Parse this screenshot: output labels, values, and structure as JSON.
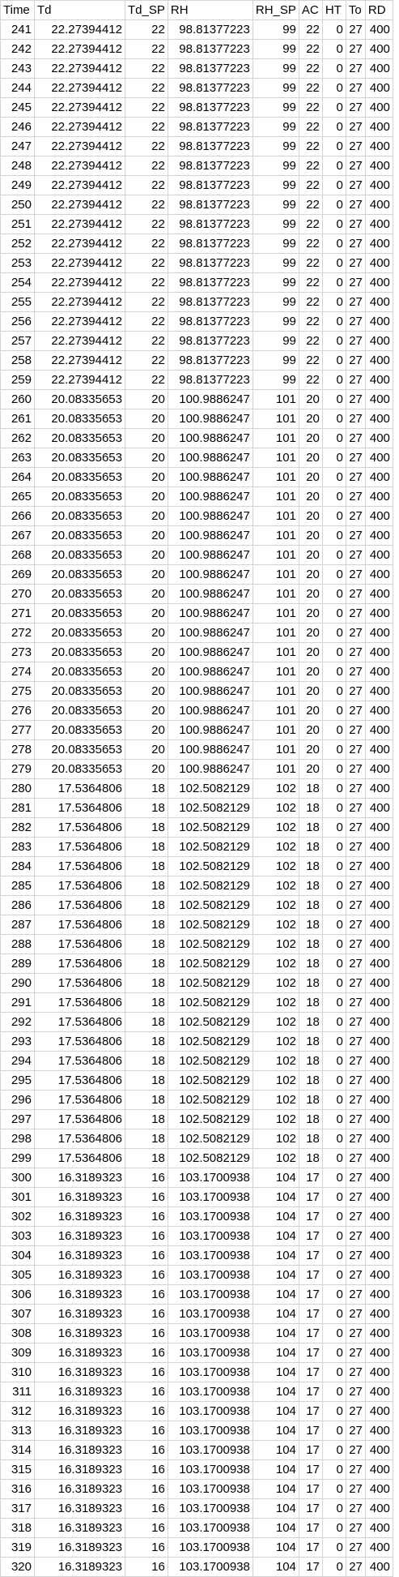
{
  "sheet": {
    "headers": [
      "Time",
      "Td",
      "Td_SP",
      "RH",
      "RH_SP",
      "AC",
      "HT",
      "To",
      "RD"
    ],
    "rows": [
      [
        "241",
        "22.27394412",
        "22",
        "98.81377223",
        "99",
        "22",
        "0",
        "27",
        "400"
      ],
      [
        "242",
        "22.27394412",
        "22",
        "98.81377223",
        "99",
        "22",
        "0",
        "27",
        "400"
      ],
      [
        "243",
        "22.27394412",
        "22",
        "98.81377223",
        "99",
        "22",
        "0",
        "27",
        "400"
      ],
      [
        "244",
        "22.27394412",
        "22",
        "98.81377223",
        "99",
        "22",
        "0",
        "27",
        "400"
      ],
      [
        "245",
        "22.27394412",
        "22",
        "98.81377223",
        "99",
        "22",
        "0",
        "27",
        "400"
      ],
      [
        "246",
        "22.27394412",
        "22",
        "98.81377223",
        "99",
        "22",
        "0",
        "27",
        "400"
      ],
      [
        "247",
        "22.27394412",
        "22",
        "98.81377223",
        "99",
        "22",
        "0",
        "27",
        "400"
      ],
      [
        "248",
        "22.27394412",
        "22",
        "98.81377223",
        "99",
        "22",
        "0",
        "27",
        "400"
      ],
      [
        "249",
        "22.27394412",
        "22",
        "98.81377223",
        "99",
        "22",
        "0",
        "27",
        "400"
      ],
      [
        "250",
        "22.27394412",
        "22",
        "98.81377223",
        "99",
        "22",
        "0",
        "27",
        "400"
      ],
      [
        "251",
        "22.27394412",
        "22",
        "98.81377223",
        "99",
        "22",
        "0",
        "27",
        "400"
      ],
      [
        "252",
        "22.27394412",
        "22",
        "98.81377223",
        "99",
        "22",
        "0",
        "27",
        "400"
      ],
      [
        "253",
        "22.27394412",
        "22",
        "98.81377223",
        "99",
        "22",
        "0",
        "27",
        "400"
      ],
      [
        "254",
        "22.27394412",
        "22",
        "98.81377223",
        "99",
        "22",
        "0",
        "27",
        "400"
      ],
      [
        "255",
        "22.27394412",
        "22",
        "98.81377223",
        "99",
        "22",
        "0",
        "27",
        "400"
      ],
      [
        "256",
        "22.27394412",
        "22",
        "98.81377223",
        "99",
        "22",
        "0",
        "27",
        "400"
      ],
      [
        "257",
        "22.27394412",
        "22",
        "98.81377223",
        "99",
        "22",
        "0",
        "27",
        "400"
      ],
      [
        "258",
        "22.27394412",
        "22",
        "98.81377223",
        "99",
        "22",
        "0",
        "27",
        "400"
      ],
      [
        "259",
        "22.27394412",
        "22",
        "98.81377223",
        "99",
        "22",
        "0",
        "27",
        "400"
      ],
      [
        "260",
        "20.08335653",
        "20",
        "100.9886247",
        "101",
        "20",
        "0",
        "27",
        "400"
      ],
      [
        "261",
        "20.08335653",
        "20",
        "100.9886247",
        "101",
        "20",
        "0",
        "27",
        "400"
      ],
      [
        "262",
        "20.08335653",
        "20",
        "100.9886247",
        "101",
        "20",
        "0",
        "27",
        "400"
      ],
      [
        "263",
        "20.08335653",
        "20",
        "100.9886247",
        "101",
        "20",
        "0",
        "27",
        "400"
      ],
      [
        "264",
        "20.08335653",
        "20",
        "100.9886247",
        "101",
        "20",
        "0",
        "27",
        "400"
      ],
      [
        "265",
        "20.08335653",
        "20",
        "100.9886247",
        "101",
        "20",
        "0",
        "27",
        "400"
      ],
      [
        "266",
        "20.08335653",
        "20",
        "100.9886247",
        "101",
        "20",
        "0",
        "27",
        "400"
      ],
      [
        "267",
        "20.08335653",
        "20",
        "100.9886247",
        "101",
        "20",
        "0",
        "27",
        "400"
      ],
      [
        "268",
        "20.08335653",
        "20",
        "100.9886247",
        "101",
        "20",
        "0",
        "27",
        "400"
      ],
      [
        "269",
        "20.08335653",
        "20",
        "100.9886247",
        "101",
        "20",
        "0",
        "27",
        "400"
      ],
      [
        "270",
        "20.08335653",
        "20",
        "100.9886247",
        "101",
        "20",
        "0",
        "27",
        "400"
      ],
      [
        "271",
        "20.08335653",
        "20",
        "100.9886247",
        "101",
        "20",
        "0",
        "27",
        "400"
      ],
      [
        "272",
        "20.08335653",
        "20",
        "100.9886247",
        "101",
        "20",
        "0",
        "27",
        "400"
      ],
      [
        "273",
        "20.08335653",
        "20",
        "100.9886247",
        "101",
        "20",
        "0",
        "27",
        "400"
      ],
      [
        "274",
        "20.08335653",
        "20",
        "100.9886247",
        "101",
        "20",
        "0",
        "27",
        "400"
      ],
      [
        "275",
        "20.08335653",
        "20",
        "100.9886247",
        "101",
        "20",
        "0",
        "27",
        "400"
      ],
      [
        "276",
        "20.08335653",
        "20",
        "100.9886247",
        "101",
        "20",
        "0",
        "27",
        "400"
      ],
      [
        "277",
        "20.08335653",
        "20",
        "100.9886247",
        "101",
        "20",
        "0",
        "27",
        "400"
      ],
      [
        "278",
        "20.08335653",
        "20",
        "100.9886247",
        "101",
        "20",
        "0",
        "27",
        "400"
      ],
      [
        "279",
        "20.08335653",
        "20",
        "100.9886247",
        "101",
        "20",
        "0",
        "27",
        "400"
      ],
      [
        "280",
        "17.5364806",
        "18",
        "102.5082129",
        "102",
        "18",
        "0",
        "27",
        "400"
      ],
      [
        "281",
        "17.5364806",
        "18",
        "102.5082129",
        "102",
        "18",
        "0",
        "27",
        "400"
      ],
      [
        "282",
        "17.5364806",
        "18",
        "102.5082129",
        "102",
        "18",
        "0",
        "27",
        "400"
      ],
      [
        "283",
        "17.5364806",
        "18",
        "102.5082129",
        "102",
        "18",
        "0",
        "27",
        "400"
      ],
      [
        "284",
        "17.5364806",
        "18",
        "102.5082129",
        "102",
        "18",
        "0",
        "27",
        "400"
      ],
      [
        "285",
        "17.5364806",
        "18",
        "102.5082129",
        "102",
        "18",
        "0",
        "27",
        "400"
      ],
      [
        "286",
        "17.5364806",
        "18",
        "102.5082129",
        "102",
        "18",
        "0",
        "27",
        "400"
      ],
      [
        "287",
        "17.5364806",
        "18",
        "102.5082129",
        "102",
        "18",
        "0",
        "27",
        "400"
      ],
      [
        "288",
        "17.5364806",
        "18",
        "102.5082129",
        "102",
        "18",
        "0",
        "27",
        "400"
      ],
      [
        "289",
        "17.5364806",
        "18",
        "102.5082129",
        "102",
        "18",
        "0",
        "27",
        "400"
      ],
      [
        "290",
        "17.5364806",
        "18",
        "102.5082129",
        "102",
        "18",
        "0",
        "27",
        "400"
      ],
      [
        "291",
        "17.5364806",
        "18",
        "102.5082129",
        "102",
        "18",
        "0",
        "27",
        "400"
      ],
      [
        "292",
        "17.5364806",
        "18",
        "102.5082129",
        "102",
        "18",
        "0",
        "27",
        "400"
      ],
      [
        "293",
        "17.5364806",
        "18",
        "102.5082129",
        "102",
        "18",
        "0",
        "27",
        "400"
      ],
      [
        "294",
        "17.5364806",
        "18",
        "102.5082129",
        "102",
        "18",
        "0",
        "27",
        "400"
      ],
      [
        "295",
        "17.5364806",
        "18",
        "102.5082129",
        "102",
        "18",
        "0",
        "27",
        "400"
      ],
      [
        "296",
        "17.5364806",
        "18",
        "102.5082129",
        "102",
        "18",
        "0",
        "27",
        "400"
      ],
      [
        "297",
        "17.5364806",
        "18",
        "102.5082129",
        "102",
        "18",
        "0",
        "27",
        "400"
      ],
      [
        "298",
        "17.5364806",
        "18",
        "102.5082129",
        "102",
        "18",
        "0",
        "27",
        "400"
      ],
      [
        "299",
        "17.5364806",
        "18",
        "102.5082129",
        "102",
        "18",
        "0",
        "27",
        "400"
      ],
      [
        "300",
        "16.3189323",
        "16",
        "103.1700938",
        "104",
        "17",
        "0",
        "27",
        "400"
      ],
      [
        "301",
        "16.3189323",
        "16",
        "103.1700938",
        "104",
        "17",
        "0",
        "27",
        "400"
      ],
      [
        "302",
        "16.3189323",
        "16",
        "103.1700938",
        "104",
        "17",
        "0",
        "27",
        "400"
      ],
      [
        "303",
        "16.3189323",
        "16",
        "103.1700938",
        "104",
        "17",
        "0",
        "27",
        "400"
      ],
      [
        "304",
        "16.3189323",
        "16",
        "103.1700938",
        "104",
        "17",
        "0",
        "27",
        "400"
      ],
      [
        "305",
        "16.3189323",
        "16",
        "103.1700938",
        "104",
        "17",
        "0",
        "27",
        "400"
      ],
      [
        "306",
        "16.3189323",
        "16",
        "103.1700938",
        "104",
        "17",
        "0",
        "27",
        "400"
      ],
      [
        "307",
        "16.3189323",
        "16",
        "103.1700938",
        "104",
        "17",
        "0",
        "27",
        "400"
      ],
      [
        "308",
        "16.3189323",
        "16",
        "103.1700938",
        "104",
        "17",
        "0",
        "27",
        "400"
      ],
      [
        "309",
        "16.3189323",
        "16",
        "103.1700938",
        "104",
        "17",
        "0",
        "27",
        "400"
      ],
      [
        "310",
        "16.3189323",
        "16",
        "103.1700938",
        "104",
        "17",
        "0",
        "27",
        "400"
      ],
      [
        "311",
        "16.3189323",
        "16",
        "103.1700938",
        "104",
        "17",
        "0",
        "27",
        "400"
      ],
      [
        "312",
        "16.3189323",
        "16",
        "103.1700938",
        "104",
        "17",
        "0",
        "27",
        "400"
      ],
      [
        "313",
        "16.3189323",
        "16",
        "103.1700938",
        "104",
        "17",
        "0",
        "27",
        "400"
      ],
      [
        "314",
        "16.3189323",
        "16",
        "103.1700938",
        "104",
        "17",
        "0",
        "27",
        "400"
      ],
      [
        "315",
        "16.3189323",
        "16",
        "103.1700938",
        "104",
        "17",
        "0",
        "27",
        "400"
      ],
      [
        "316",
        "16.3189323",
        "16",
        "103.1700938",
        "104",
        "17",
        "0",
        "27",
        "400"
      ],
      [
        "317",
        "16.3189323",
        "16",
        "103.1700938",
        "104",
        "17",
        "0",
        "27",
        "400"
      ],
      [
        "318",
        "16.3189323",
        "16",
        "103.1700938",
        "104",
        "17",
        "0",
        "27",
        "400"
      ],
      [
        "319",
        "16.3189323",
        "16",
        "103.1700938",
        "104",
        "17",
        "0",
        "27",
        "400"
      ],
      [
        "320",
        "16.3189323",
        "16",
        "103.1700938",
        "104",
        "17",
        "0",
        "27",
        "400"
      ]
    ]
  }
}
